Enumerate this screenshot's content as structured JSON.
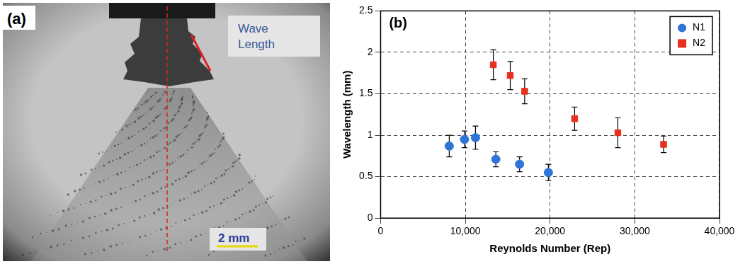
{
  "image_panel": {
    "label": "(a)",
    "annotation": "Wave Length",
    "scale_bar": "2 mm"
  },
  "chart_data": {
    "type": "scatter",
    "panel": "(b)",
    "x_label": "Reynolds Number (Rep)",
    "y_label": "Wavelength (mm)",
    "xlim": [
      0,
      40000
    ],
    "xticks": [
      {
        "value": 0,
        "label": "0"
      },
      {
        "value": 10000,
        "label": "10,000"
      },
      {
        "value": 20000,
        "label": "20,000"
      },
      {
        "value": 30000,
        "label": "30,000"
      },
      {
        "value": 40000,
        "label": "40,000"
      }
    ],
    "ylim": [
      0,
      2.5
    ],
    "yticks": [
      0,
      0.5,
      1,
      1.5,
      2,
      2.5
    ],
    "grid": true,
    "legend": "upper right",
    "series": [
      {
        "name": "N1",
        "color": "#2e75d6",
        "marker": "circle",
        "x": [
          8100,
          9900,
          11200,
          13600,
          16400,
          19800
        ],
        "values": [
          0.87,
          0.95,
          0.97,
          0.71,
          0.65,
          0.55
        ],
        "errors": [
          0.13,
          0.1,
          0.14,
          0.09,
          0.09,
          0.1
        ]
      },
      {
        "name": "N2",
        "color": "#e8301e",
        "marker": "square",
        "x": [
          13300,
          15300,
          17000,
          22900,
          28000,
          33400
        ],
        "values": [
          1.85,
          1.72,
          1.53,
          1.2,
          1.03,
          0.89
        ],
        "errors": [
          0.18,
          0.17,
          0.15,
          0.14,
          0.18,
          0.1
        ]
      }
    ]
  }
}
